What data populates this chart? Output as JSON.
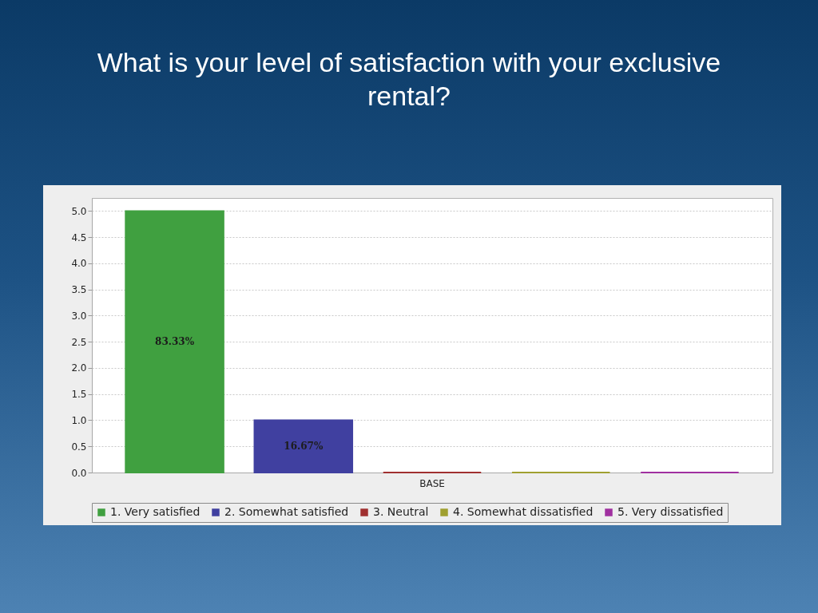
{
  "chart_data": {
    "type": "bar",
    "title": "What is your level of satisfaction with your exclusive rental?",
    "categories": [
      "BASE"
    ],
    "series": [
      {
        "name": "1. Very satisfied",
        "color": "#40a040",
        "values": [
          5
        ]
      },
      {
        "name": "2. Somewhat satisfied",
        "color": "#4040a0",
        "values": [
          1
        ]
      },
      {
        "name": "3. Neutral",
        "color": "#a03030",
        "values": [
          0
        ]
      },
      {
        "name": "4. Somewhat dissatisfied",
        "color": "#a0a030",
        "values": [
          0
        ]
      },
      {
        "name": "5. Very dissatisfied",
        "color": "#a030a0",
        "values": [
          0
        ]
      }
    ],
    "annotations": [
      "83.33%",
      "16.67%"
    ],
    "ylim": [
      0,
      5.25
    ],
    "yticks": [
      {
        "value": 0,
        "label": "0.0"
      },
      {
        "value": 0.5,
        "label": "0.5"
      },
      {
        "value": 1,
        "label": "1.0"
      },
      {
        "value": 1.5,
        "label": "1.5"
      },
      {
        "value": 2,
        "label": "2.0"
      },
      {
        "value": 2.5,
        "label": "2.5"
      },
      {
        "value": 3,
        "label": "3.0"
      },
      {
        "value": 3.5,
        "label": "3.5"
      },
      {
        "value": 4,
        "label": "4.0"
      },
      {
        "value": 4.5,
        "label": "4.5"
      },
      {
        "value": 5,
        "label": "5.0"
      }
    ],
    "grid": "y",
    "legend": "bottom"
  }
}
